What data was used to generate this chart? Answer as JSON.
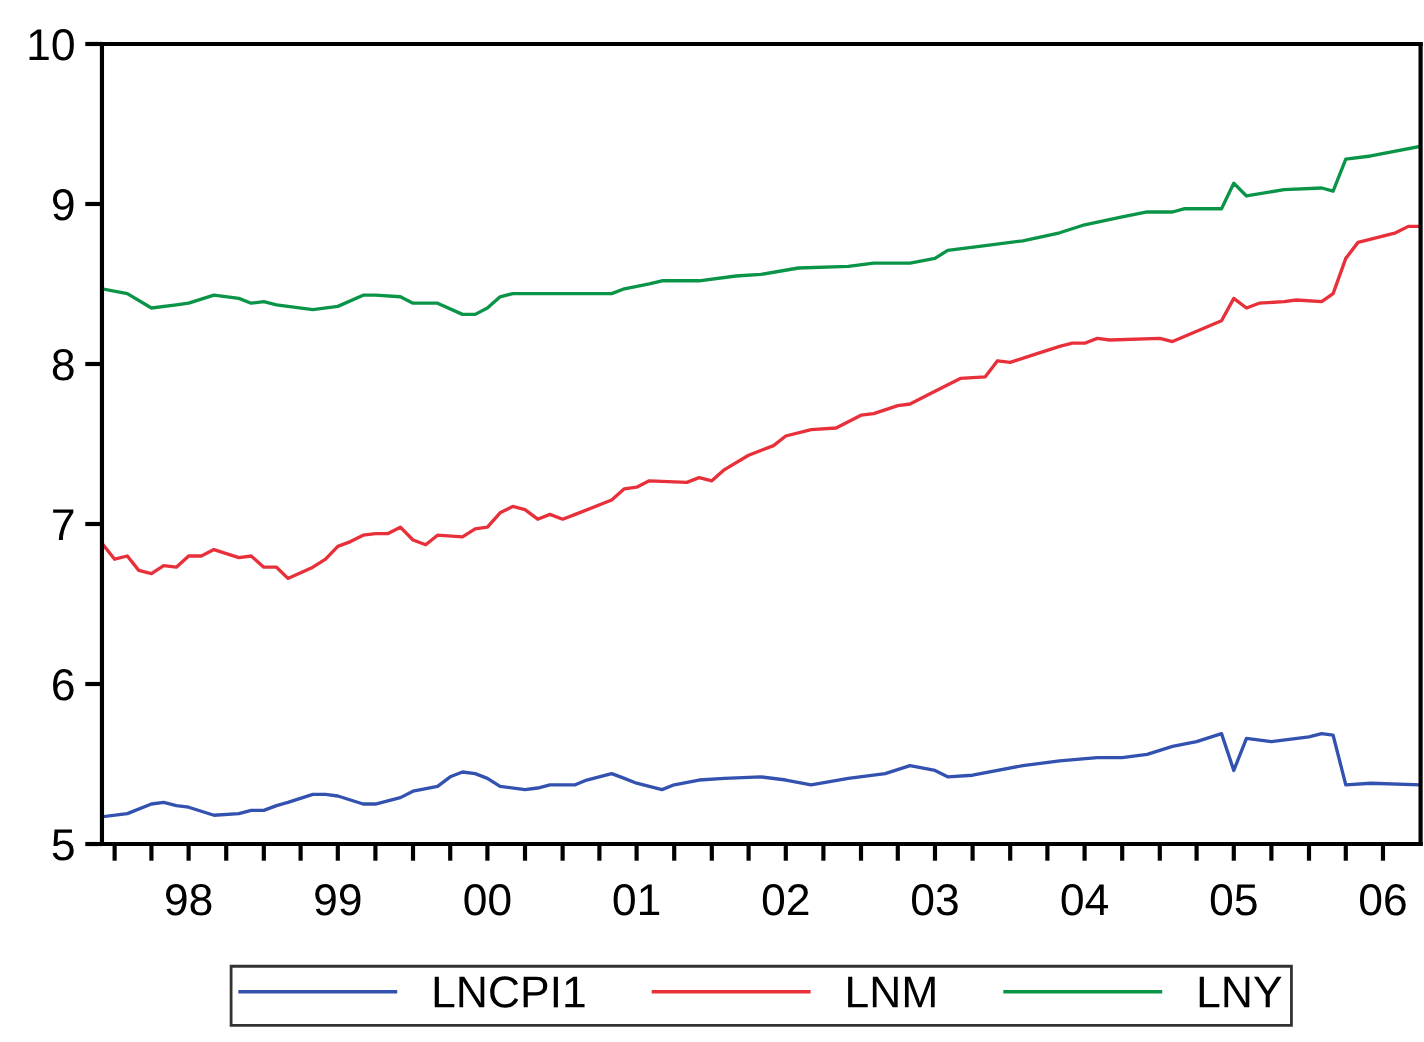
{
  "chart_data": {
    "type": "line",
    "xlim": [
      "1997-12",
      "2006-10"
    ],
    "ylim": [
      5,
      10
    ],
    "yticks": [
      5,
      6,
      7,
      8,
      9,
      10
    ],
    "xticks": [
      {
        "value": "1998-01",
        "label": null
      },
      {
        "value": "1998-04",
        "label": null
      },
      {
        "value": "1998-07",
        "label": "98"
      },
      {
        "value": "1998-10",
        "label": null
      },
      {
        "value": "1999-01",
        "label": null
      },
      {
        "value": "1999-04",
        "label": null
      },
      {
        "value": "1999-07",
        "label": "99"
      },
      {
        "value": "1999-10",
        "label": null
      },
      {
        "value": "2000-01",
        "label": null
      },
      {
        "value": "2000-04",
        "label": null
      },
      {
        "value": "2000-07",
        "label": "00"
      },
      {
        "value": "2000-10",
        "label": null
      },
      {
        "value": "2001-01",
        "label": null
      },
      {
        "value": "2001-04",
        "label": null
      },
      {
        "value": "2001-07",
        "label": "01"
      },
      {
        "value": "2001-10",
        "label": null
      },
      {
        "value": "2002-01",
        "label": null
      },
      {
        "value": "2002-04",
        "label": null
      },
      {
        "value": "2002-07",
        "label": "02"
      },
      {
        "value": "2002-10",
        "label": null
      },
      {
        "value": "2003-01",
        "label": null
      },
      {
        "value": "2003-04",
        "label": null
      },
      {
        "value": "2003-07",
        "label": "03"
      },
      {
        "value": "2003-10",
        "label": null
      },
      {
        "value": "2004-01",
        "label": null
      },
      {
        "value": "2004-04",
        "label": null
      },
      {
        "value": "2004-07",
        "label": "04"
      },
      {
        "value": "2004-10",
        "label": null
      },
      {
        "value": "2005-01",
        "label": null
      },
      {
        "value": "2005-04",
        "label": null
      },
      {
        "value": "2005-07",
        "label": "05"
      },
      {
        "value": "2005-10",
        "label": null
      },
      {
        "value": "2006-01",
        "label": null
      },
      {
        "value": "2006-04",
        "label": null
      },
      {
        "value": "2006-07",
        "label": "06"
      }
    ],
    "grid": false,
    "legend": "bottom",
    "marker": "none",
    "line_style": "solid",
    "series": [
      {
        "name": "LNCPI1",
        "color": "#3352b0",
        "x": [
          "1997-12",
          "1998-02",
          "1998-04",
          "1998-05",
          "1998-06",
          "1998-07",
          "1998-09",
          "1998-11",
          "1998-12",
          "1999-01",
          "1999-02",
          "1999-03",
          "1999-05",
          "1999-06",
          "1999-07",
          "1999-09",
          "1999-10",
          "1999-12",
          "2000-01",
          "2000-03",
          "2000-04",
          "2000-05",
          "2000-06",
          "2000-07",
          "2000-08",
          "2000-10",
          "2000-11",
          "2000-12",
          "2001-02",
          "2001-03",
          "2001-05",
          "2001-06",
          "2001-07",
          "2001-09",
          "2001-10",
          "2001-12",
          "2002-02",
          "2002-05",
          "2002-07",
          "2002-09",
          "2002-12",
          "2003-03",
          "2003-05",
          "2003-07",
          "2003-08",
          "2003-10",
          "2004-02",
          "2004-05",
          "2004-08",
          "2004-10",
          "2004-12",
          "2005-02",
          "2005-04",
          "2005-06",
          "2005-07",
          "2005-08",
          "2005-10",
          "2006-01",
          "2006-02",
          "2006-03",
          "2006-04",
          "2006-06",
          "2006-10"
        ],
        "values": [
          5.17,
          5.19,
          5.25,
          5.26,
          5.24,
          5.23,
          5.18,
          5.19,
          5.21,
          5.21,
          5.24,
          5.26,
          5.31,
          5.31,
          5.3,
          5.25,
          5.25,
          5.29,
          5.33,
          5.36,
          5.42,
          5.45,
          5.44,
          5.41,
          5.36,
          5.34,
          5.35,
          5.37,
          5.37,
          5.4,
          5.44,
          5.41,
          5.38,
          5.34,
          5.37,
          5.4,
          5.41,
          5.42,
          5.4,
          5.37,
          5.41,
          5.44,
          5.49,
          5.46,
          5.42,
          5.43,
          5.49,
          5.52,
          5.54,
          5.54,
          5.56,
          5.61,
          5.64,
          5.69,
          5.46,
          5.66,
          5.64,
          5.67,
          5.69,
          5.68,
          5.37,
          5.38,
          5.37
        ]
      },
      {
        "name": "LNM",
        "color": "#e8303a",
        "x": [
          "1997-12",
          "1998-01",
          "1998-02",
          "1998-03",
          "1998-04",
          "1998-05",
          "1998-06",
          "1998-07",
          "1998-08",
          "1998-09",
          "1998-11",
          "1998-12",
          "1999-01",
          "1999-02",
          "1999-03",
          "1999-05",
          "1999-06",
          "1999-07",
          "1999-08",
          "1999-09",
          "1999-10",
          "1999-11",
          "1999-12",
          "2000-01",
          "2000-02",
          "2000-03",
          "2000-05",
          "2000-06",
          "2000-07",
          "2000-08",
          "2000-09",
          "2000-10",
          "2000-11",
          "2000-12",
          "2001-01",
          "2001-02",
          "2001-05",
          "2001-06",
          "2001-07",
          "2001-08",
          "2001-11",
          "2001-12",
          "2002-01",
          "2002-02",
          "2002-04",
          "2002-06",
          "2002-07",
          "2002-09",
          "2002-11",
          "2003-01",
          "2003-02",
          "2003-04",
          "2003-05",
          "2003-07",
          "2003-09",
          "2003-11",
          "2003-12",
          "2004-01",
          "2004-03",
          "2004-05",
          "2004-06",
          "2004-07",
          "2004-08",
          "2004-09",
          "2005-01",
          "2005-02",
          "2005-06",
          "2005-07",
          "2005-08",
          "2005-09",
          "2005-11",
          "2005-12",
          "2006-02",
          "2006-03",
          "2006-04",
          "2006-05",
          "2006-08",
          "2006-09",
          "2006-10"
        ],
        "values": [
          6.88,
          6.78,
          6.8,
          6.71,
          6.69,
          6.74,
          6.73,
          6.8,
          6.8,
          6.84,
          6.79,
          6.8,
          6.73,
          6.73,
          6.66,
          6.73,
          6.78,
          6.86,
          6.89,
          6.93,
          6.94,
          6.94,
          6.98,
          6.9,
          6.87,
          6.93,
          6.92,
          6.97,
          6.98,
          7.07,
          7.11,
          7.09,
          7.03,
          7.06,
          7.03,
          7.06,
          7.15,
          7.22,
          7.23,
          7.27,
          7.26,
          7.29,
          7.27,
          7.34,
          7.43,
          7.49,
          7.55,
          7.59,
          7.6,
          7.68,
          7.69,
          7.74,
          7.75,
          7.83,
          7.91,
          7.92,
          8.02,
          8.01,
          8.06,
          8.11,
          8.13,
          8.13,
          8.16,
          8.15,
          8.16,
          8.14,
          8.27,
          8.41,
          8.35,
          8.38,
          8.39,
          8.4,
          8.39,
          8.44,
          8.66,
          8.76,
          8.82,
          8.86,
          8.86
        ]
      },
      {
        "name": "LNY",
        "color": "#0a9448",
        "x": [
          "1997-12",
          "1998-02",
          "1998-04",
          "1998-06",
          "1998-07",
          "1998-09",
          "1998-11",
          "1998-12",
          "1999-01",
          "1999-02",
          "1999-03",
          "1999-05",
          "1999-07",
          "1999-09",
          "1999-10",
          "1999-12",
          "2000-01",
          "2000-03",
          "2000-05",
          "2000-06",
          "2000-07",
          "2000-08",
          "2000-09",
          "2000-11",
          "2000-12",
          "2001-01",
          "2001-05",
          "2001-06",
          "2001-08",
          "2001-09",
          "2001-12",
          "2002-03",
          "2002-05",
          "2002-08",
          "2002-12",
          "2003-02",
          "2003-05",
          "2003-07",
          "2003-08",
          "2003-11",
          "2004-02",
          "2004-05",
          "2004-07",
          "2004-10",
          "2004-12",
          "2005-02",
          "2005-03",
          "2005-06",
          "2005-07",
          "2005-08",
          "2005-11",
          "2006-02",
          "2006-03",
          "2006-04",
          "2006-06",
          "2006-10"
        ],
        "values": [
          8.47,
          8.44,
          8.35,
          8.37,
          8.38,
          8.43,
          8.41,
          8.38,
          8.39,
          8.37,
          8.36,
          8.34,
          8.36,
          8.43,
          8.43,
          8.42,
          8.38,
          8.38,
          8.31,
          8.31,
          8.35,
          8.42,
          8.44,
          8.44,
          8.44,
          8.44,
          8.44,
          8.47,
          8.5,
          8.52,
          8.52,
          8.55,
          8.56,
          8.6,
          8.61,
          8.63,
          8.63,
          8.66,
          8.71,
          8.74,
          8.77,
          8.82,
          8.87,
          8.92,
          8.95,
          8.95,
          8.97,
          8.97,
          9.13,
          9.05,
          9.09,
          9.1,
          9.08,
          9.28,
          9.3,
          9.36
        ]
      }
    ]
  }
}
